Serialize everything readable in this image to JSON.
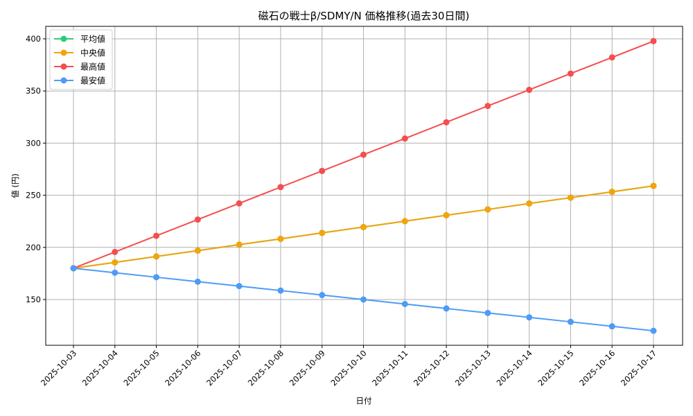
{
  "chart_data": {
    "type": "line",
    "title": "磁石の戦士β/SDMY/N 価格推移(過去30日間)",
    "xlabel": "日付",
    "ylabel": "値 (円)",
    "ylim": [
      107,
      412
    ],
    "yticks": [
      150,
      200,
      250,
      300,
      350,
      400
    ],
    "grid": true,
    "legend_position": "upper left",
    "categories": [
      "2025-10-03",
      "2025-10-04",
      "2025-10-05",
      "2025-10-06",
      "2025-10-07",
      "2025-10-08",
      "2025-10-09",
      "2025-10-10",
      "2025-10-11",
      "2025-10-12",
      "2025-10-13",
      "2025-10-14",
      "2025-10-15",
      "2025-10-16",
      "2025-10-17"
    ],
    "series": [
      {
        "name": "平均値",
        "color": "#2ecc71",
        "values": [
          180,
          185.6,
          191.3,
          196.9,
          202.6,
          208.2,
          213.9,
          219.5,
          225.1,
          230.8,
          236.4,
          242.1,
          247.7,
          253.3,
          259.0
        ]
      },
      {
        "name": "中央値",
        "color": "#f5a30a",
        "values": [
          180,
          185.6,
          191.3,
          196.9,
          202.6,
          208.2,
          213.9,
          219.5,
          225.1,
          230.8,
          236.4,
          242.1,
          247.7,
          253.3,
          259.0
        ]
      },
      {
        "name": "最高値",
        "color": "#f44e4e",
        "values": [
          180,
          195.6,
          211.1,
          226.7,
          242.2,
          257.8,
          273.3,
          288.9,
          304.4,
          320.0,
          335.6,
          351.1,
          366.7,
          382.2,
          397.8
        ]
      },
      {
        "name": "最安値",
        "color": "#4d9bf7",
        "values": [
          180,
          175.7,
          171.4,
          167.1,
          162.9,
          158.6,
          154.3,
          150.0,
          145.7,
          141.4,
          137.1,
          132.9,
          128.6,
          124.3,
          120.0
        ]
      }
    ]
  },
  "legend": {
    "items": [
      {
        "label": "平均値",
        "color": "#2ecc71"
      },
      {
        "label": "中央値",
        "color": "#f5a30a"
      },
      {
        "label": "最高値",
        "color": "#f44e4e"
      },
      {
        "label": "最安値",
        "color": "#4d9bf7"
      }
    ]
  }
}
